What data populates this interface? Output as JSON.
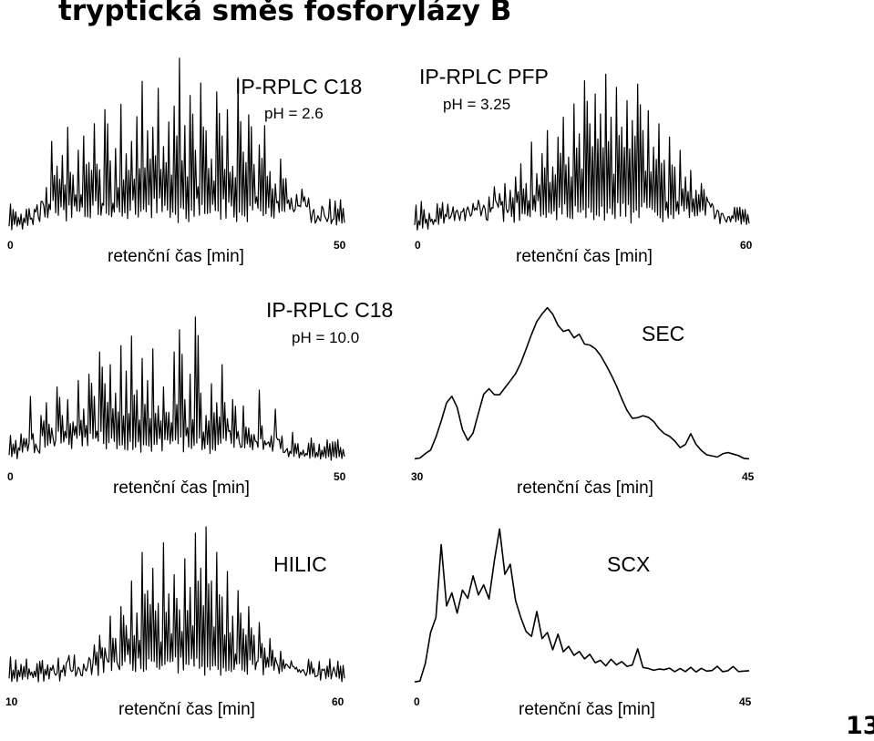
{
  "page": {
    "title": "tryptická směs fosforylázy B",
    "page_number": "13"
  },
  "chart_data": [
    {
      "type": "line",
      "title": "IP-RPLC C18",
      "subtitle": "pH = 2.6",
      "xlabel": "retenční čas [min]",
      "ylabel": "",
      "xlim": [
        0,
        50
      ],
      "x_ticks": [
        "0",
        "50"
      ],
      "grid": false,
      "legend": "none",
      "series": [
        {
          "profile": "spiky",
          "y": [
            0.04,
            0.05,
            0.05,
            0.06,
            0.08,
            0.12,
            0.18,
            0.26,
            0.52,
            0.38,
            0.44,
            0.6,
            0.33,
            0.47,
            0.55,
            0.4,
            0.62,
            0.36,
            0.7,
            0.41,
            0.48,
            0.73,
            0.45,
            0.52,
            0.66,
            0.86,
            0.58,
            0.6,
            0.82,
            0.49,
            0.63,
            0.72,
            0.99,
            0.61,
            0.78,
            0.47,
            0.85,
            0.58,
            0.42,
            0.8,
            0.55,
            0.7,
            0.38,
            0.88,
            0.46,
            0.67,
            0.39,
            0.5,
            0.61,
            0.35,
            0.28,
            0.42,
            0.31,
            0.2,
            0.22,
            0.25,
            0.15,
            0.12,
            0.1,
            0.14,
            0.09,
            0.08,
            0.07,
            0.06
          ]
        }
      ]
    },
    {
      "type": "line",
      "title": "IP-RPLC PFP",
      "subtitle": "pH = 3.25",
      "xlabel": "retenční čas [min]",
      "ylabel": "",
      "xlim": [
        0,
        60
      ],
      "x_ticks": [
        "0",
        "60"
      ],
      "grid": false,
      "legend": "none",
      "series": [
        {
          "profile": "spiky",
          "y": [
            0.05,
            0.05,
            0.06,
            0.07,
            0.07,
            0.09,
            0.1,
            0.12,
            0.14,
            0.13,
            0.16,
            0.18,
            0.2,
            0.17,
            0.22,
            0.28,
            0.24,
            0.3,
            0.26,
            0.34,
            0.42,
            0.3,
            0.55,
            0.36,
            0.48,
            0.62,
            0.4,
            0.58,
            0.7,
            0.46,
            0.78,
            0.6,
            0.92,
            0.66,
            0.84,
            0.72,
            0.96,
            0.7,
            0.88,
            0.64,
            0.8,
            0.68,
            0.9,
            0.62,
            0.74,
            0.52,
            0.66,
            0.44,
            0.58,
            0.4,
            0.5,
            0.34,
            0.38,
            0.26,
            0.3,
            0.22,
            0.18,
            0.14,
            0.12,
            0.1,
            0.09,
            0.08,
            0.07,
            0.06
          ]
        }
      ]
    },
    {
      "type": "line",
      "title": "IP-RPLC C18",
      "subtitle": "pH = 10.0",
      "xlabel": "retenční čas [min]",
      "ylabel": "",
      "xlim": [
        0,
        50
      ],
      "x_ticks": [
        "0",
        "50"
      ],
      "grid": false,
      "legend": "none",
      "series": [
        {
          "profile": "spiky",
          "y": [
            0.05,
            0.06,
            0.08,
            0.1,
            0.42,
            0.12,
            0.3,
            0.38,
            0.22,
            0.48,
            0.3,
            0.4,
            0.26,
            0.52,
            0.34,
            0.56,
            0.42,
            0.7,
            0.5,
            0.62,
            0.44,
            0.74,
            0.58,
            0.8,
            0.46,
            0.66,
            0.52,
            0.72,
            0.36,
            0.48,
            0.32,
            0.7,
            0.84,
            0.4,
            0.56,
            0.92,
            0.44,
            0.3,
            0.5,
            0.38,
            0.62,
            0.28,
            0.4,
            0.2,
            0.36,
            0.22,
            0.18,
            0.46,
            0.14,
            0.1,
            0.34,
            0.09,
            0.08,
            0.06,
            0.06,
            0.05,
            0.05,
            0.04,
            0.04,
            0.04,
            0.04,
            0.04,
            0.04,
            0.04
          ]
        }
      ]
    },
    {
      "type": "line",
      "title": "SEC",
      "subtitle": "",
      "xlabel": "retenční čas [min]",
      "ylabel": "",
      "xlim": [
        30,
        45
      ],
      "x_ticks": [
        "30",
        "45"
      ],
      "grid": false,
      "legend": "none",
      "series": [
        {
          "profile": "smooth",
          "y": [
            0.02,
            0.03,
            0.05,
            0.09,
            0.16,
            0.26,
            0.38,
            0.42,
            0.36,
            0.22,
            0.14,
            0.2,
            0.32,
            0.44,
            0.48,
            0.44,
            0.44,
            0.48,
            0.52,
            0.56,
            0.64,
            0.72,
            0.82,
            0.9,
            0.96,
            1.0,
            0.94,
            0.88,
            0.84,
            0.85,
            0.8,
            0.82,
            0.76,
            0.76,
            0.72,
            0.68,
            0.62,
            0.56,
            0.5,
            0.42,
            0.34,
            0.28,
            0.28,
            0.3,
            0.3,
            0.26,
            0.22,
            0.18,
            0.17,
            0.14,
            0.1,
            0.12,
            0.18,
            0.12,
            0.07,
            0.05,
            0.05,
            0.04,
            0.05,
            0.07,
            0.05,
            0.04,
            0.03,
            0.03
          ]
        }
      ]
    },
    {
      "type": "line",
      "title": "HILIC",
      "subtitle": "",
      "xlabel": "retenční čas [min]",
      "ylabel": "",
      "xlim": [
        10,
        60
      ],
      "x_ticks": [
        "10",
        "60"
      ],
      "grid": false,
      "legend": "none",
      "series": [
        {
          "profile": "spiky",
          "y": [
            0.05,
            0.05,
            0.06,
            0.06,
            0.07,
            0.06,
            0.08,
            0.07,
            0.1,
            0.08,
            0.09,
            0.16,
            0.1,
            0.12,
            0.14,
            0.18,
            0.26,
            0.32,
            0.24,
            0.44,
            0.3,
            0.5,
            0.38,
            0.66,
            0.46,
            0.84,
            0.6,
            0.74,
            0.52,
            0.9,
            0.58,
            0.7,
            0.48,
            0.8,
            0.62,
            0.96,
            0.74,
            1.0,
            0.66,
            0.84,
            0.56,
            0.72,
            0.44,
            0.6,
            0.36,
            0.5,
            0.32,
            0.4,
            0.24,
            0.3,
            0.18,
            0.22,
            0.14,
            0.16,
            0.12,
            0.1,
            0.09,
            0.08,
            0.07,
            0.1,
            0.06,
            0.12,
            0.05,
            0.05
          ]
        }
      ]
    },
    {
      "type": "line",
      "title": "SCX",
      "subtitle": "",
      "xlabel": "retenční čas [min]",
      "ylabel": "",
      "xlim": [
        0,
        45
      ],
      "x_ticks": [
        "0",
        "45"
      ],
      "grid": false,
      "legend": "none",
      "series": [
        {
          "profile": "smooth",
          "y": [
            0.02,
            0.04,
            0.14,
            0.35,
            0.45,
            0.9,
            0.52,
            0.6,
            0.46,
            0.62,
            0.56,
            0.7,
            0.58,
            0.66,
            0.56,
            0.8,
            1.0,
            0.72,
            0.78,
            0.56,
            0.44,
            0.36,
            0.32,
            0.48,
            0.3,
            0.34,
            0.24,
            0.34,
            0.22,
            0.26,
            0.2,
            0.22,
            0.18,
            0.2,
            0.16,
            0.16,
            0.14,
            0.18,
            0.14,
            0.16,
            0.13,
            0.14,
            0.24,
            0.12,
            0.12,
            0.1,
            0.11,
            0.1,
            0.12,
            0.1,
            0.11,
            0.1,
            0.12,
            0.1,
            0.11,
            0.1,
            0.1,
            0.12,
            0.1,
            0.1,
            0.13,
            0.1,
            0.1,
            0.1
          ]
        }
      ]
    }
  ]
}
